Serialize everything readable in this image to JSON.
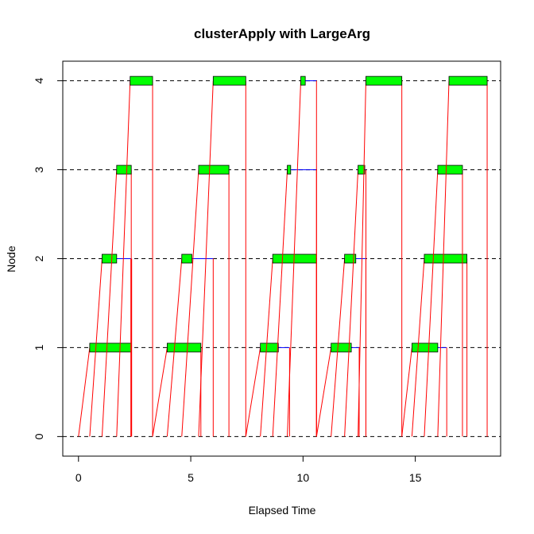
{
  "chart_data": {
    "type": "timeline",
    "title": "clusterApply with LargeArg",
    "xlabel": "Elapsed Time",
    "ylabel": "Node",
    "xlim": [
      -0.7,
      18.8
    ],
    "ylim": [
      -0.22,
      4.22
    ],
    "x_ticks": [
      "0",
      "5",
      "10",
      "15"
    ],
    "y_ticks": [
      "0",
      "1",
      "2",
      "3",
      "4"
    ],
    "nodes": [
      0,
      1,
      2,
      3,
      4
    ],
    "grid": "dashed horizontal line at each node",
    "colors": {
      "compute": "#00ff00",
      "communication": "#ff0000",
      "wait": "#0000ff",
      "grid": "#000000"
    },
    "tasks": [
      {
        "node": 1,
        "send": 0.0,
        "start": 0.5,
        "end": 2.35,
        "ret_start": 2.35,
        "ret": 2.35
      },
      {
        "node": 2,
        "send": 0.5,
        "start": 1.05,
        "end": 1.7,
        "ret_start": 2.35,
        "ret": 2.35
      },
      {
        "node": 3,
        "send": 1.05,
        "start": 1.7,
        "end": 2.35,
        "ret_start": 2.35,
        "ret": 2.35
      },
      {
        "node": 4,
        "send": 1.7,
        "start": 2.3,
        "end": 3.3,
        "ret_start": 3.3,
        "ret": 3.3
      },
      {
        "node": 1,
        "send": 3.3,
        "start": 3.95,
        "end": 5.45,
        "ret_start": 5.45,
        "ret": 5.45
      },
      {
        "node": 2,
        "send": 3.95,
        "start": 4.6,
        "end": 5.05,
        "ret_start": 6.0,
        "ret": 6.0
      },
      {
        "node": 3,
        "send": 4.6,
        "start": 5.35,
        "end": 6.7,
        "ret_start": 6.7,
        "ret": 6.7
      },
      {
        "node": 4,
        "send": 5.35,
        "start": 6.0,
        "end": 7.45,
        "ret_start": 7.45,
        "ret": 7.45
      },
      {
        "node": 1,
        "send": 7.45,
        "start": 8.1,
        "end": 8.9,
        "ret_start": 9.4,
        "ret": 9.4
      },
      {
        "node": 2,
        "send": 8.1,
        "start": 8.65,
        "end": 10.6,
        "ret_start": 10.6,
        "ret": 10.6
      },
      {
        "node": 3,
        "send": 8.65,
        "start": 9.3,
        "end": 9.45,
        "ret_start": 10.6,
        "ret": 10.6
      },
      {
        "node": 4,
        "send": 9.3,
        "start": 9.9,
        "end": 10.1,
        "ret_start": 10.6,
        "ret": 10.6
      },
      {
        "node": 1,
        "send": 10.6,
        "start": 11.25,
        "end": 12.15,
        "ret_start": 12.5,
        "ret": 12.5
      },
      {
        "node": 2,
        "send": 11.25,
        "start": 11.85,
        "end": 12.35,
        "ret_start": 12.8,
        "ret": 12.8
      },
      {
        "node": 3,
        "send": 11.85,
        "start": 12.45,
        "end": 12.75,
        "ret_start": 12.8,
        "ret": 12.8
      },
      {
        "node": 4,
        "send": 12.45,
        "start": 12.8,
        "end": 14.4,
        "ret_start": 14.4,
        "ret": 14.4
      },
      {
        "node": 1,
        "send": 14.4,
        "start": 14.85,
        "end": 16.0,
        "ret_start": 16.4,
        "ret": 16.4
      },
      {
        "node": 2,
        "send": 14.85,
        "start": 15.4,
        "end": 17.3,
        "ret_start": 17.3,
        "ret": 17.3
      },
      {
        "node": 3,
        "send": 15.4,
        "start": 16.0,
        "end": 17.1,
        "ret_start": 17.1,
        "ret": 17.1
      },
      {
        "node": 4,
        "send": 16.0,
        "start": 16.5,
        "end": 18.2,
        "ret_start": 18.2,
        "ret": 18.2
      }
    ]
  }
}
